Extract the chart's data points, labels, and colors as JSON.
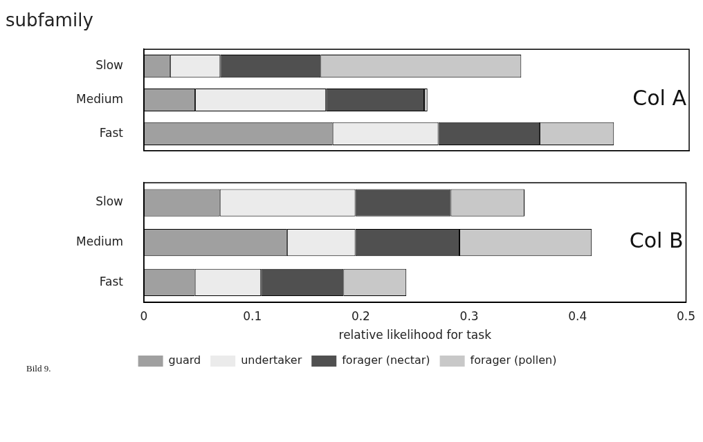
{
  "chart_data": [
    {
      "type": "bar",
      "orientation": "horizontal",
      "stacked": true,
      "title": "subfamily",
      "categories": [
        "Slow",
        "Medium",
        "Fast"
      ],
      "xlim": [
        0,
        0.5
      ],
      "xticks": [
        0,
        0.1,
        0.2,
        0.3,
        0.4,
        0.5
      ],
      "tick_labels": "y",
      "legend": false,
      "grid": false,
      "annotations": [
        "Col A"
      ],
      "series": [
        {
          "color": "#a0a0a0",
          "values": [
            0.024,
            0.047,
            0.173
          ]
        },
        {
          "color": "#ebebeb",
          "values": [
            0.046,
            0.12,
            0.097
          ]
        },
        {
          "color": "#505050",
          "values": [
            0.092,
            0.09,
            0.093
          ]
        },
        {
          "color": "#c8c8c8",
          "values": [
            0.184,
            0.003,
            0.068
          ]
        }
      ]
    },
    {
      "type": "bar",
      "orientation": "horizontal",
      "stacked": true,
      "categories": [
        "Slow",
        "Medium",
        "Fast"
      ],
      "xlim": [
        0,
        0.5
      ],
      "xticks": [
        0,
        0.1,
        0.2,
        0.3,
        0.4,
        0.5
      ],
      "xlabel": "relative likelihood for task",
      "legend": "bottom",
      "grid": false,
      "annotations": [
        "Col B",
        "Bild 9."
      ],
      "series": [
        {
          "name": "guard",
          "color": "#a0a0a0",
          "values": [
            0.07,
            0.132,
            0.047
          ]
        },
        {
          "name": "undertaker",
          "color": "#ebebeb",
          "values": [
            0.125,
            0.063,
            0.061
          ]
        },
        {
          "name": "forager (nectar)",
          "color": "#505050",
          "values": [
            0.088,
            0.096,
            0.076
          ]
        },
        {
          "name": "forager (pollen)",
          "color": "#c8c8c8",
          "values": [
            0.068,
            0.122,
            0.058
          ]
        }
      ]
    }
  ]
}
